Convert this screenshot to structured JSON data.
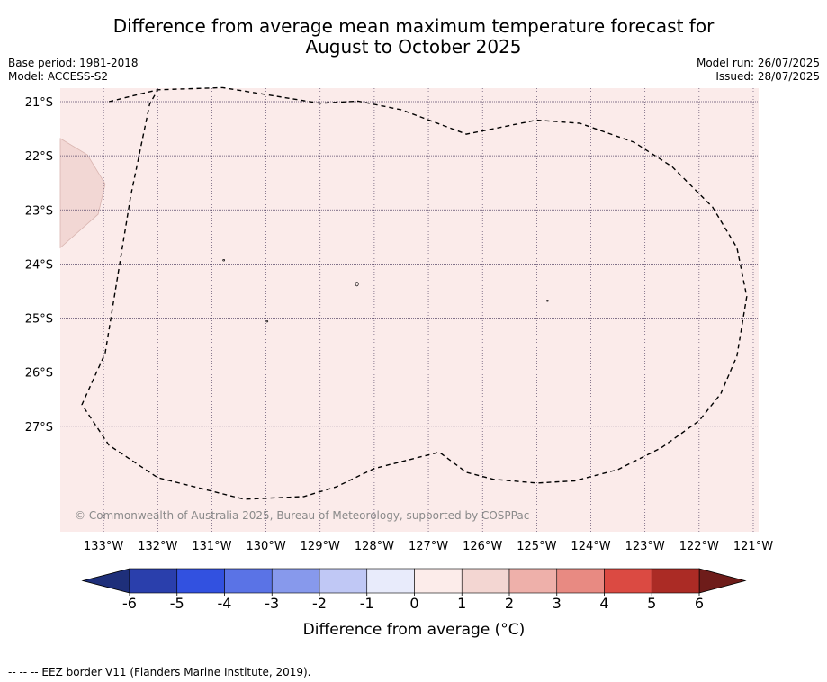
{
  "title_line1": "Difference from average mean maximum temperature forecast for",
  "title_line2": "August to October 2025",
  "base_period": "Base period: 1981-2018",
  "model": "Model: ACCESS-S2",
  "model_run": "Model run: 26/07/2025",
  "issued": "Issued: 28/07/2025",
  "copyright": "© Commonwealth of Australia 2025, Bureau of Meteorology, supported by COSPPac",
  "footer": "--  --  -- EEZ border V11 (Flanders Marine Institute, 2019).",
  "map": {
    "lon_range": [
      -133.8,
      -120.9
    ],
    "lat_range": [
      -28.95,
      -20.75
    ],
    "lon_ticks": [
      -133,
      -132,
      -131,
      -130,
      -129,
      -128,
      -127,
      -126,
      -125,
      -124,
      -123,
      -122,
      -121
    ],
    "lon_tick_labels": [
      "133°W",
      "132°W",
      "131°W",
      "130°W",
      "129°W",
      "128°W",
      "127°W",
      "126°W",
      "125°W",
      "124°W",
      "123°W",
      "122°W",
      "121°W"
    ],
    "lat_ticks": [
      -21,
      -22,
      -23,
      -24,
      -25,
      -26,
      -27
    ],
    "lat_tick_labels": [
      "21°S",
      "22°S",
      "23°S",
      "24°S",
      "25°S",
      "26°S",
      "27°S"
    ],
    "ocean_color": "#fbebea",
    "patch_color": "#f2d7d4",
    "grid": true,
    "eez_border": [
      [
        -132.9,
        -21.0
      ],
      [
        -132.0,
        -20.78
      ],
      [
        -130.8,
        -20.74
      ],
      [
        -129.0,
        -21.03
      ],
      [
        -128.3,
        -20.99
      ],
      [
        -127.5,
        -21.15
      ],
      [
        -126.3,
        -21.6
      ],
      [
        -125.0,
        -21.34
      ],
      [
        -124.2,
        -21.4
      ],
      [
        -123.2,
        -21.75
      ],
      [
        -122.5,
        -22.2
      ],
      [
        -121.75,
        -22.95
      ],
      [
        -121.3,
        -23.7
      ],
      [
        -121.12,
        -24.6
      ],
      [
        -121.3,
        -25.7
      ],
      [
        -121.6,
        -26.4
      ],
      [
        -122.0,
        -26.9
      ],
      [
        -122.7,
        -27.4
      ],
      [
        -123.5,
        -27.8
      ],
      [
        -124.3,
        -28.01
      ],
      [
        -125.0,
        -28.05
      ],
      [
        -125.8,
        -27.98
      ],
      [
        -126.3,
        -27.85
      ],
      [
        -126.8,
        -27.48
      ],
      [
        -128.0,
        -27.78
      ],
      [
        -128.7,
        -28.12
      ],
      [
        -129.3,
        -28.3
      ],
      [
        -130.4,
        -28.35
      ],
      [
        -132.0,
        -27.95
      ],
      [
        -132.9,
        -27.35
      ],
      [
        -133.4,
        -26.6
      ],
      [
        -132.97,
        -25.65
      ],
      [
        -132.5,
        -22.75
      ],
      [
        -132.15,
        -21.05
      ],
      [
        -132.0,
        -20.78
      ]
    ],
    "land_patch": [
      [
        -133.8,
        -21.68
      ],
      [
        -133.3,
        -21.98
      ],
      [
        -132.97,
        -22.52
      ],
      [
        -133.1,
        -23.08
      ],
      [
        -133.8,
        -23.7
      ]
    ],
    "islands": [
      {
        "lon": -128.32,
        "lat": -24.37
      },
      {
        "lon": -130.78,
        "lat": -23.93
      },
      {
        "lon": -129.98,
        "lat": -25.06
      },
      {
        "lon": -124.8,
        "lat": -24.68
      }
    ]
  },
  "colorbar": {
    "label": "Difference from average ($^\\circ$C)",
    "label_display": "Difference from average (°C)",
    "tick_labels": [
      "-6",
      "-5",
      "-4",
      "-3",
      "-2",
      "-1",
      "0",
      "1",
      "2",
      "3",
      "4",
      "5",
      "6"
    ],
    "under_color": "#1e2f7a",
    "over_color": "#6e1c1a",
    "colors": [
      "#2a3fac",
      "#3251e0",
      "#5a73e6",
      "#8799ec",
      "#c0c8f5",
      "#e8ebfb",
      "#fcecea",
      "#f3d6d2",
      "#eeb0aa",
      "#e88a82",
      "#db4a42",
      "#ab2b25"
    ]
  }
}
